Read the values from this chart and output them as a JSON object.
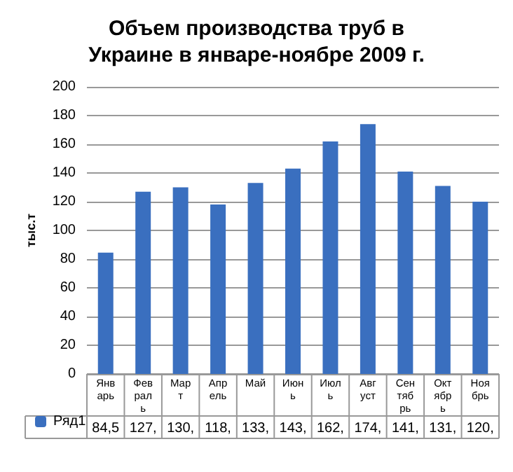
{
  "chart_data": {
    "type": "bar",
    "title": "Объем производства труб в\nУкраине в январе-ноябре 2009 г.",
    "ylabel": "тыс.т",
    "categories": [
      "Январь",
      "Февраль",
      "Март",
      "Апрель",
      "Май",
      "Июнь",
      "Июль",
      "Август",
      "Сентябрь",
      "Октябрь",
      "Ноябрь"
    ],
    "series": [
      {
        "name": "Ряд1",
        "color": "#3a6fbf",
        "values": [
          84.5,
          127,
          130,
          118,
          133,
          143,
          162,
          174,
          141,
          131,
          120
        ],
        "value_labels": [
          "84,5",
          "127,",
          "130,",
          "118,",
          "133,",
          "143,",
          "162,",
          "174,",
          "141,",
          "131,",
          "120,"
        ]
      }
    ],
    "ylim": [
      0,
      200
    ],
    "yticks": [
      0,
      20,
      40,
      60,
      80,
      100,
      120,
      140,
      160,
      180,
      200
    ],
    "grid": "y",
    "legend": "bottom left"
  }
}
